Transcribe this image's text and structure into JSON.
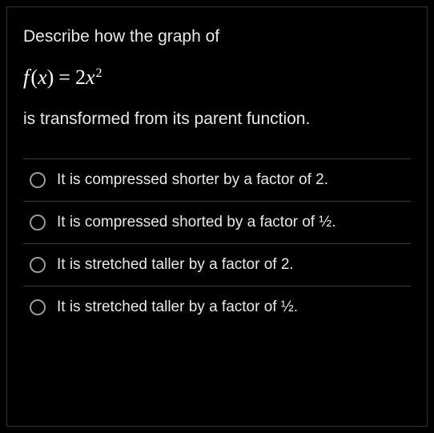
{
  "question": {
    "line1": "Describe how the graph of",
    "equation": {
      "fn": "f",
      "var_open": "(",
      "var": "x",
      "var_close": ")",
      "equals": "=",
      "coef": "2",
      "base": "x",
      "exp": "2"
    },
    "line2": "is transformed from its parent function."
  },
  "options": [
    {
      "label": "It is compressed shorter by a factor of 2."
    },
    {
      "label": "It is compressed shorted by a factor of ½."
    },
    {
      "label": "It is stretched taller by a factor of 2."
    },
    {
      "label": "It is stretched taller by a factor of ½."
    }
  ],
  "styling": {
    "background_color": "#000000",
    "text_color": "#e8e8e8",
    "border_color": "#333333",
    "divider_color": "#3a3a3a",
    "radio_border_color": "#9a9a9a",
    "question_fontsize": 21,
    "equation_fontsize": 26,
    "option_fontsize": 19,
    "radio_diameter": 20
  }
}
